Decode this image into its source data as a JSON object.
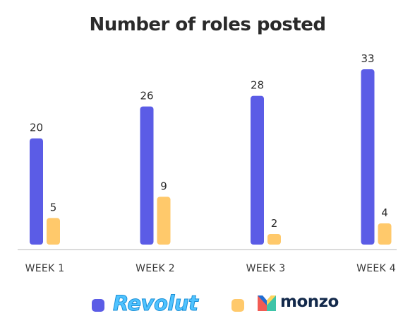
{
  "chart_data": {
    "type": "bar",
    "title": "Number of roles posted",
    "categories": [
      "WEEK 1",
      "WEEK 2",
      "WEEK 3",
      "WEEK 4"
    ],
    "series": [
      {
        "name": "Revolut",
        "values": [
          20,
          26,
          28,
          33
        ],
        "color": "#5b5ce6"
      },
      {
        "name": "monzo",
        "values": [
          5,
          9,
          2,
          4
        ],
        "color": "#ffc96b"
      }
    ],
    "xlabel": "",
    "ylabel": "",
    "ylim": [
      0,
      33
    ],
    "grid": false,
    "legend": "bottom",
    "data_labels": true
  },
  "legend": {
    "revolut_logo_text": "Revolut",
    "monzo_logo_text": "monzo"
  },
  "colors": {
    "axis": "#cfcfcf",
    "monzo_mark": [
      "#f25c54",
      "#3ec4a8",
      "#1f6ed4",
      "#ffd45c"
    ]
  }
}
